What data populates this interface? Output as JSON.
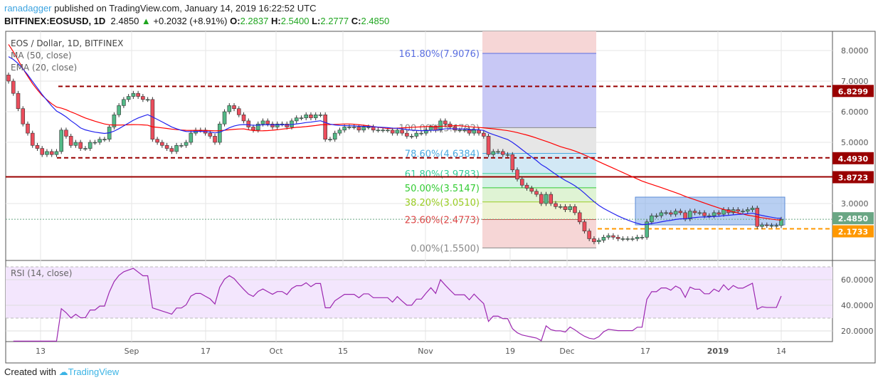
{
  "header": {
    "author": "ranadagger",
    "published": "published on TradingView.com, January 14, 2019 16:22:52 UTC",
    "symbol": "BITFINEX:EOSUSD, 1D",
    "last": "2.4850",
    "change": "+0.2032 (+8.91%)",
    "o_label": "O:",
    "o": "2.2837",
    "h_label": "H:",
    "h": "2.5400",
    "l_label": "L:",
    "l": "2.2777",
    "c_label": "C:",
    "c": "2.4850"
  },
  "legend": {
    "title": "EOS / Dollar, 1D, BITFINEX",
    "ma": "MA (50, close)",
    "ema": "EMA (20, close)",
    "rsi": "RSI (14, close)"
  },
  "footer": {
    "created": "Created with",
    "brand": "TradingView"
  },
  "chart_data": [
    {
      "type": "candlestick",
      "title": "EOS / Dollar, 1D, BITFINEX",
      "ylim": [
        1.2,
        8.6
      ],
      "y_ticks": [
        "8.0000",
        "7.0000",
        "6.0000",
        "5.0000",
        "3.0000"
      ],
      "x_ticks": [
        "13",
        "Sep",
        "17",
        "Oct",
        "15",
        "Nov",
        "19",
        "Dec",
        "17",
        "2019",
        "14"
      ],
      "close": [
        7.0,
        6.6,
        6.1,
        5.6,
        5.3,
        4.9,
        4.8,
        4.6,
        4.7,
        4.6,
        4.7,
        5.4,
        5.2,
        4.9,
        5.0,
        4.8,
        4.8,
        5.0,
        5.0,
        5.1,
        5.1,
        5.5,
        5.9,
        6.2,
        6.4,
        6.5,
        6.6,
        6.5,
        6.4,
        6.4,
        5.1,
        5.0,
        4.9,
        4.8,
        4.7,
        4.9,
        4.9,
        5.0,
        5.3,
        5.4,
        5.4,
        5.3,
        5.2,
        5.0,
        5.6,
        6.0,
        6.2,
        6.1,
        5.9,
        5.7,
        5.5,
        5.4,
        5.6,
        5.7,
        5.6,
        5.5,
        5.6,
        5.6,
        5.5,
        5.7,
        5.8,
        5.8,
        5.9,
        5.8,
        5.9,
        5.9,
        5.1,
        5.1,
        5.3,
        5.4,
        5.5,
        5.5,
        5.5,
        5.4,
        5.5,
        5.5,
        5.4,
        5.4,
        5.4,
        5.4,
        5.3,
        5.4,
        5.3,
        5.2,
        5.2,
        5.3,
        5.3,
        5.4,
        5.5,
        5.4,
        5.7,
        5.6,
        5.5,
        5.4,
        5.4,
        5.4,
        5.3,
        5.4,
        5.3,
        5.2,
        4.6,
        4.7,
        4.7,
        4.6,
        4.6,
        4.1,
        3.8,
        3.6,
        3.5,
        3.4,
        3.3,
        3.0,
        3.3,
        3.0,
        2.9,
        2.9,
        2.8,
        2.9,
        2.7,
        2.4,
        2.1,
        1.85,
        1.75,
        1.8,
        1.9,
        1.95,
        1.9,
        1.85,
        1.85,
        1.85,
        1.85,
        1.9,
        1.9,
        2.4,
        2.6,
        2.6,
        2.7,
        2.7,
        2.65,
        2.75,
        2.7,
        2.5,
        2.75,
        2.7,
        2.7,
        2.6,
        2.6,
        2.7,
        2.65,
        2.8,
        2.7,
        2.8,
        2.75,
        2.75,
        2.8,
        2.85,
        2.25,
        2.3,
        2.28,
        2.28,
        2.28,
        2.485
      ],
      "indicators": [
        "MA (50, close)",
        "EMA (20, close)"
      ],
      "levels": [
        {
          "label": "6.8299",
          "value": 6.8299,
          "color": "#990000",
          "style": "dashed"
        },
        {
          "label": "4.4930",
          "value": 4.493,
          "color": "#990000",
          "style": "dashed"
        },
        {
          "label": "3.8723",
          "value": 3.8723,
          "color": "#990000",
          "style": "solid"
        },
        {
          "label": "2.4850",
          "value": 2.485,
          "color": "#6aa684",
          "style": "dotted"
        },
        {
          "label": "2.1733",
          "value": 2.1733,
          "color": "#ff9800",
          "style": "dashed"
        }
      ],
      "fib": [
        {
          "label": "161.80%(7.9076)",
          "value": 7.9076,
          "color": "#5a6ee0",
          "fill": "#c8c8f5"
        },
        {
          "label": "100.00%(5.4792)",
          "value": 5.4792,
          "color": "#888888",
          "fill": "#e6e6e6"
        },
        {
          "label": "78.60%(4.6384)",
          "value": 4.6384,
          "color": "#4aa9e0",
          "fill": "#d2e8f5"
        },
        {
          "label": "61.80%(3.9783)",
          "value": 3.9783,
          "color": "#33cc99",
          "fill": "#d4f2e6"
        },
        {
          "label": "50.00%(3.5147)",
          "value": 3.5147,
          "color": "#33cc33",
          "fill": "#dff3d4"
        },
        {
          "label": "38.20%(3.0510)",
          "value": 3.051,
          "color": "#99cc22",
          "fill": "#eef3d4"
        },
        {
          "label": "23.60%(2.4773)",
          "value": 2.4773,
          "color": "#dd4444",
          "fill": "#f6d6d6"
        },
        {
          "label": "0.00%(1.5500)",
          "value": 1.55,
          "color": "#888888",
          "fill": null
        }
      ],
      "colors": {
        "up": "#53b987",
        "down": "#eb4d5c",
        "ma": "#ff0000",
        "ema": "#2222ee",
        "range_box": "#7da7e8"
      }
    },
    {
      "type": "line",
      "title": "RSI (14, close)",
      "ylim": [
        10,
        75
      ],
      "y_ticks": [
        "60.0000",
        "40.0000",
        "20.0000"
      ],
      "bands": [
        30,
        70
      ],
      "color": "#9c27b0"
    }
  ]
}
